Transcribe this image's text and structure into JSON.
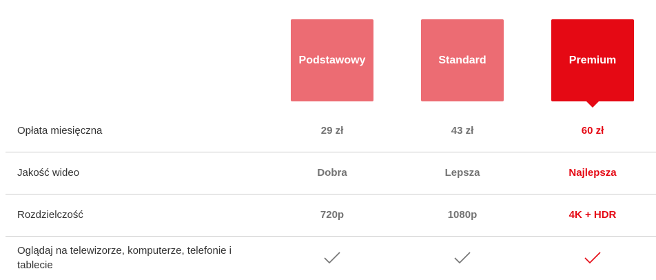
{
  "plans": [
    {
      "name": "Podstawowy",
      "selected": false
    },
    {
      "name": "Standard",
      "selected": false
    },
    {
      "name": "Premium",
      "selected": true
    }
  ],
  "colors": {
    "accent": "#e50914",
    "plan_unselected": "#ec6c73",
    "value_text": "#737373"
  },
  "rows": [
    {
      "label": "Opłata miesięczna",
      "values": [
        "29 zł",
        "43 zł",
        "60 zł"
      ]
    },
    {
      "label": "Jakość wideo",
      "values": [
        "Dobra",
        "Lepsza",
        "Najlepsza"
      ]
    },
    {
      "label": "Rozdzielczość",
      "values": [
        "720p",
        "1080p",
        "4K + HDR"
      ]
    },
    {
      "label": "Oglądaj na telewizorze, komputerze, telefonie i tablecie",
      "values": [
        "check-icon",
        "check-icon",
        "check-icon"
      ]
    }
  ]
}
